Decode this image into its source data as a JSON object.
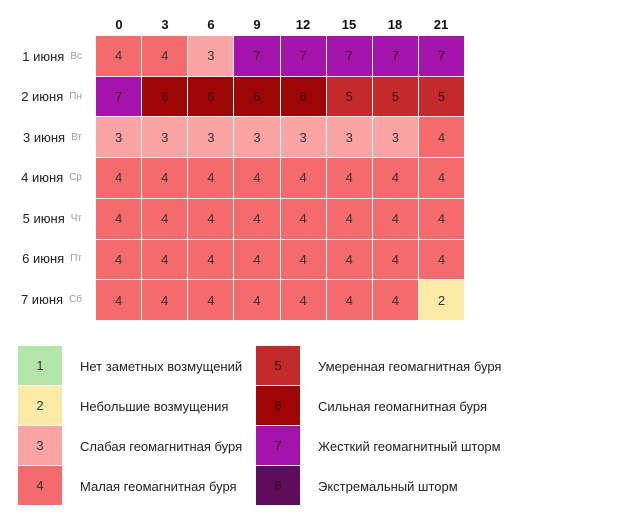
{
  "columns": [
    "0",
    "3",
    "6",
    "9",
    "12",
    "15",
    "18",
    "21"
  ],
  "days": [
    {
      "date": "1 июня",
      "weekday": "Вс",
      "values": [
        4,
        4,
        3,
        7,
        7,
        7,
        7,
        7
      ]
    },
    {
      "date": "2 июня",
      "weekday": "Пн",
      "values": [
        7,
        6,
        6,
        6,
        6,
        5,
        5,
        5
      ]
    },
    {
      "date": "3 июня",
      "weekday": "Вт",
      "values": [
        3,
        3,
        3,
        3,
        3,
        3,
        3,
        4
      ]
    },
    {
      "date": "4 июня",
      "weekday": "Ср",
      "values": [
        4,
        4,
        4,
        4,
        4,
        4,
        4,
        4
      ]
    },
    {
      "date": "5 июня",
      "weekday": "Чт",
      "values": [
        4,
        4,
        4,
        4,
        4,
        4,
        4,
        4
      ]
    },
    {
      "date": "6 июня",
      "weekday": "Пт",
      "values": [
        4,
        4,
        4,
        4,
        4,
        4,
        4,
        4
      ]
    },
    {
      "date": "7 июня",
      "weekday": "Сб",
      "values": [
        4,
        4,
        4,
        4,
        4,
        4,
        4,
        2
      ]
    }
  ],
  "levels": [
    {
      "value": 1,
      "label": "Нет заметных возмущений",
      "color": "#b3e5a8"
    },
    {
      "value": 2,
      "label": "Небольшие возмущения",
      "color": "#fbeaa5"
    },
    {
      "value": 3,
      "label": "Слабая геомагнитная буря",
      "color": "#fba4a4"
    },
    {
      "value": 4,
      "label": "Малая геомагнитная буря",
      "color": "#f56a6a"
    },
    {
      "value": 5,
      "label": "Умеренная геомагнитная буря",
      "color": "#c42a2a"
    },
    {
      "value": 6,
      "label": "Сильная геомагнитная буря",
      "color": "#9e0606"
    },
    {
      "value": 7,
      "label": "Жесткий геомагнитный шторм",
      "color": "#a414ac"
    },
    {
      "value": 8,
      "label": "Экстремальный шторм",
      "color": "#5e0c5c"
    }
  ]
}
